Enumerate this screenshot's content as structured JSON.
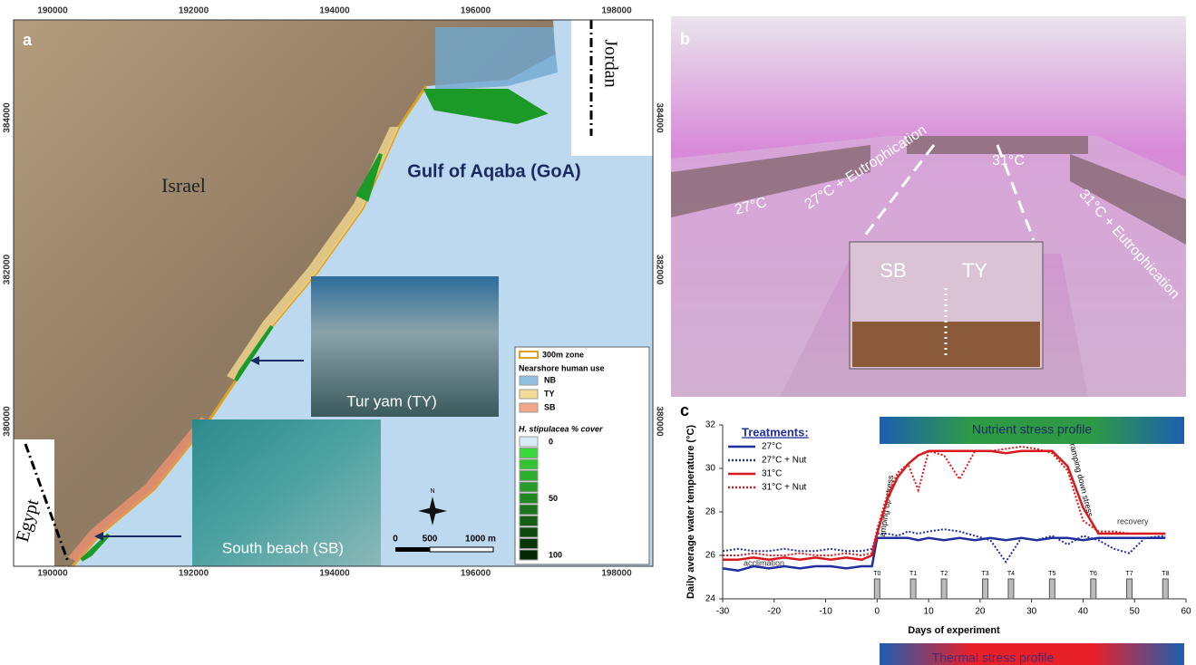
{
  "map": {
    "panel": "a",
    "xticks": [
      190000,
      192000,
      194000,
      196000,
      198000
    ],
    "yticks": [
      384000,
      382000,
      380000
    ],
    "places": {
      "israel": "Israel",
      "jordan": "Jordan",
      "egypt": "Egypt",
      "gulf": "Gulf of Aqaba (GoA)"
    },
    "insets": [
      "Tur yam (TY)",
      "South beach (SB)"
    ],
    "legend": {
      "zone": "300m zone",
      "use_title": "Nearshore human use",
      "use": [
        "NB",
        "TY",
        "SB"
      ],
      "cover_title": "H. stipulacea % cover",
      "cover": [
        "0",
        "50",
        "100"
      ]
    },
    "scale": [
      "0",
      "500",
      "1000 m"
    ],
    "north": "N"
  },
  "photo": {
    "panel": "b",
    "labels": [
      "27°C",
      "27°C + Eutrophication",
      "31°C",
      "31°C + Eutrophication"
    ],
    "tank": [
      "SB",
      "TY"
    ]
  },
  "chart_data": {
    "type": "line",
    "panel": "c",
    "y_label": "Daily average water temperature (°C)",
    "x_label": "Days of experiment",
    "xlim": [
      -30,
      60
    ],
    "xticks": [
      -30,
      -20,
      -10,
      0,
      10,
      20,
      30,
      40,
      50,
      60
    ],
    "ylim": [
      24,
      32
    ],
    "yticks": [
      24,
      26,
      28,
      30,
      32
    ],
    "legend_title": "Treatments:",
    "x": [
      -30,
      -27,
      -24,
      -21,
      -18,
      -15,
      -12,
      -9,
      -6,
      -3,
      -1,
      0,
      2,
      4,
      6,
      8,
      10,
      13,
      16,
      19,
      22,
      25,
      28,
      31,
      34,
      37,
      40,
      43,
      46,
      49,
      52,
      56
    ],
    "series": [
      {
        "name": "27°C",
        "color": "#1f2f9e",
        "line_style": "solid",
        "values": [
          25.4,
          25.3,
          25.5,
          25.4,
          25.5,
          25.4,
          25.5,
          25.5,
          25.4,
          25.5,
          25.5,
          26.8,
          26.8,
          26.8,
          26.8,
          26.7,
          26.8,
          26.7,
          26.8,
          26.7,
          26.8,
          26.7,
          26.8,
          26.7,
          26.8,
          26.8,
          26.7,
          26.8,
          26.8,
          26.8,
          26.8,
          26.8
        ]
      },
      {
        "name": "27°C + Nut",
        "color": "#1f2f9e",
        "line_style": "dotted",
        "values": [
          26.2,
          26.3,
          26.2,
          26.2,
          26.3,
          26.2,
          26.2,
          26.3,
          26.2,
          26.2,
          26.3,
          27.0,
          27.0,
          26.9,
          27.1,
          27.0,
          27.1,
          27.2,
          27.1,
          26.9,
          26.7,
          25.7,
          26.8,
          26.7,
          26.9,
          26.5,
          26.9,
          26.7,
          26.3,
          26.1,
          26.8,
          26.9
        ]
      },
      {
        "name": "31°C",
        "color": "#d7191c",
        "line_style": "solid",
        "values": [
          25.8,
          25.8,
          25.9,
          25.8,
          25.9,
          25.8,
          25.9,
          25.8,
          25.9,
          25.8,
          26.0,
          27.0,
          28.6,
          29.6,
          30.2,
          30.6,
          30.8,
          30.8,
          30.8,
          30.8,
          30.8,
          30.7,
          30.8,
          30.8,
          30.8,
          30.1,
          28.2,
          27.0,
          27.0,
          27.0,
          27.0,
          27.0
        ]
      },
      {
        "name": "31°C + Nut",
        "color": "#d7191c",
        "line_style": "dotted",
        "values": [
          26.0,
          26.0,
          26.1,
          26.0,
          26.0,
          26.1,
          26.0,
          26.0,
          26.1,
          26.0,
          26.1,
          27.2,
          28.8,
          29.8,
          30.2,
          29.0,
          30.8,
          30.6,
          29.5,
          30.8,
          30.8,
          30.9,
          31.0,
          30.9,
          30.7,
          29.9,
          27.6,
          27.1,
          27.1,
          27.0,
          27.0,
          27.0
        ]
      }
    ],
    "sampling": {
      "labels": [
        "T0",
        "T1",
        "T2",
        "T3",
        "T4",
        "T5",
        "T6",
        "T7",
        "T8"
      ],
      "x": [
        0,
        7,
        13,
        21,
        26,
        34,
        42,
        49,
        56
      ]
    },
    "annotations": [
      "acclimation",
      "ramping up stress",
      "ramping down stress",
      "recovery"
    ],
    "profiles": [
      "Nutrient stress profile",
      "Thermal stress profile"
    ]
  }
}
